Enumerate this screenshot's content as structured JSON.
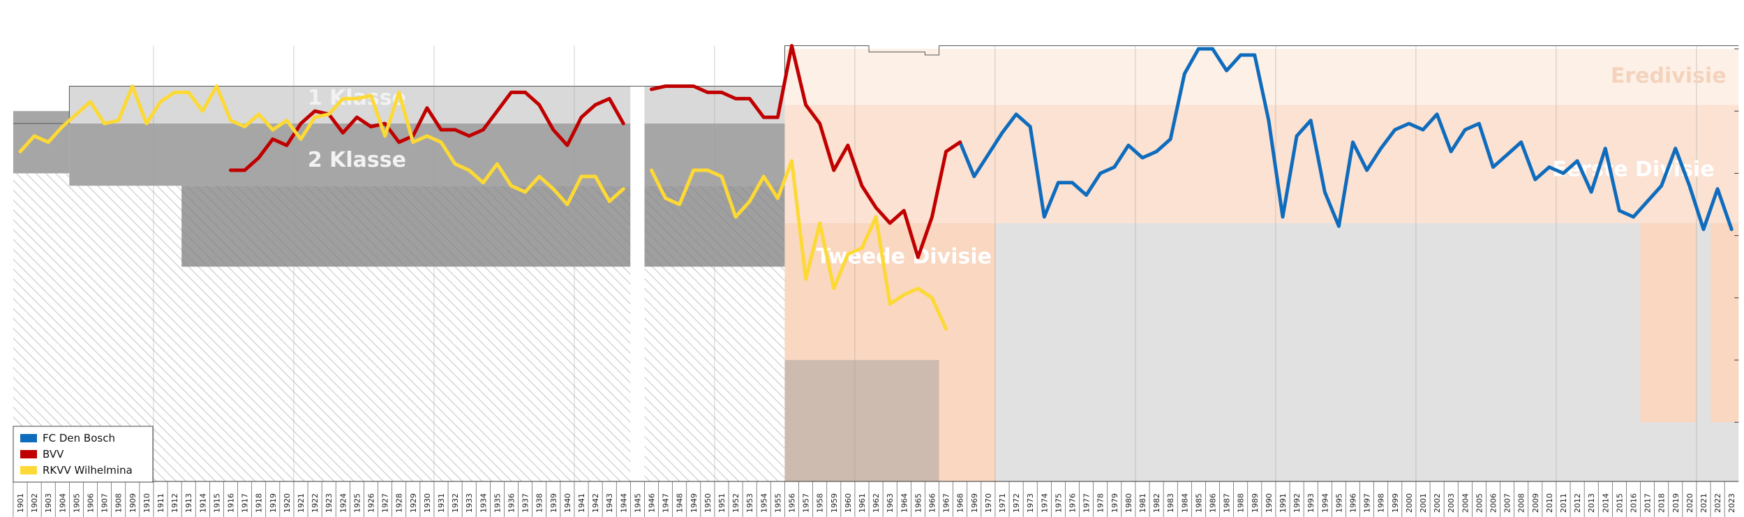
{
  "chart_data": {
    "type": "line",
    "x_range": [
      1901,
      2023
    ],
    "y_range": [
      1,
      140
    ],
    "xticks": [
      "1901",
      "1902",
      "1903",
      "1904",
      "1905",
      "1906",
      "1907",
      "1908",
      "1909",
      "1910",
      "1911",
      "1912",
      "1913",
      "1914",
      "1915",
      "1916",
      "1917",
      "1918",
      "1919",
      "1920",
      "1921",
      "1922",
      "1923",
      "1924",
      "1925",
      "1926",
      "1927",
      "1928",
      "1929",
      "1930",
      "1931",
      "1932",
      "1933",
      "1934",
      "1935",
      "1936",
      "1937",
      "1938",
      "1939",
      "1940",
      "1941",
      "1942",
      "1943",
      "1944",
      "1945",
      "1946",
      "1947",
      "1948",
      "1949",
      "1950",
      "1951",
      "1952",
      "1953",
      "1954",
      "1955",
      "1956",
      "1957",
      "1958",
      "1959",
      "1960",
      "1961",
      "1962",
      "1963",
      "1964",
      "1965",
      "1966",
      "1967",
      "1968",
      "1969",
      "1970",
      "1971",
      "1972",
      "1973",
      "1974",
      "1975",
      "1976",
      "1977",
      "1978",
      "1979",
      "1980",
      "1981",
      "1982",
      "1983",
      "1984",
      "1985",
      "1986",
      "1987",
      "1988",
      "1989",
      "1990",
      "1991",
      "1992",
      "1993",
      "1994",
      "1995",
      "1996",
      "1997",
      "1998",
      "1999",
      "2000",
      "2001",
      "2002",
      "2003",
      "2004",
      "2005",
      "2006",
      "2007",
      "2008",
      "2009",
      "2010",
      "2011",
      "2012",
      "2013",
      "2014",
      "2015",
      "2016",
      "2017",
      "2018",
      "2019",
      "2020",
      "2021",
      "2022",
      "2023"
    ],
    "division_labels": [
      {
        "text": "1 Klasse",
        "x": 1925,
        "y": 124,
        "color": "#f2f2f2"
      },
      {
        "text": "2 Klasse",
        "x": 1925,
        "y": 104,
        "color": "#f2f2f2"
      },
      {
        "text": "Tweede Divisie",
        "x": 1964,
        "y": 73,
        "color": "#ffffff"
      },
      {
        "text": "Eerste Divisie",
        "x": 2016,
        "y": 101,
        "color": "#ffffff"
      },
      {
        "text": "Eredivisie",
        "x": 2018.5,
        "y": 131,
        "color": "#f4d3bd"
      }
    ],
    "series": [
      {
        "name": "FC Den Bosch",
        "color": "#0f6cbd",
        "segments": [
          [
            [
              1968,
              110
            ],
            [
              1969,
              99
            ],
            [
              1970,
              106
            ],
            [
              1971,
              113
            ],
            [
              1972,
              119
            ],
            [
              1973,
              115
            ],
            [
              1974,
              86
            ],
            [
              1975,
              97
            ],
            [
              1976,
              97
            ],
            [
              1977,
              93
            ],
            [
              1978,
              100
            ],
            [
              1979,
              102
            ],
            [
              1980,
              109
            ],
            [
              1981,
              105
            ],
            [
              1982,
              107
            ],
            [
              1983,
              111
            ],
            [
              1984,
              132
            ],
            [
              1985,
              140
            ],
            [
              1986,
              140
            ],
            [
              1987,
              133
            ],
            [
              1988,
              138
            ],
            [
              1989,
              138
            ],
            [
              1990,
              117
            ],
            [
              1991,
              86
            ],
            [
              1992,
              112
            ],
            [
              1993,
              117
            ],
            [
              1994,
              94
            ],
            [
              1995,
              83
            ],
            [
              1996,
              110
            ],
            [
              1997,
              101
            ],
            [
              1998,
              108
            ],
            [
              1999,
              114
            ],
            [
              2000,
              116
            ],
            [
              2001,
              114
            ],
            [
              2002,
              119
            ],
            [
              2003,
              107
            ],
            [
              2004,
              114
            ],
            [
              2005,
              116
            ],
            [
              2006,
              102
            ],
            [
              2007,
              106
            ],
            [
              2008,
              110
            ],
            [
              2009,
              98
            ],
            [
              2010,
              102
            ],
            [
              2011,
              100
            ],
            [
              2012,
              104
            ],
            [
              2013,
              94
            ],
            [
              2014,
              108
            ],
            [
              2015,
              88
            ],
            [
              2016,
              86
            ],
            [
              2017,
              91
            ],
            [
              2018,
              96
            ],
            [
              2019,
              108
            ],
            [
              2020,
              96
            ],
            [
              2021,
              82
            ],
            [
              2022,
              95
            ],
            [
              2023,
              82
            ]
          ]
        ]
      },
      {
        "name": "BVV",
        "color": "#c00000",
        "segments": [
          [
            [
              1916,
              101
            ],
            [
              1917,
              101
            ],
            [
              1918,
              105
            ],
            [
              1919,
              111
            ],
            [
              1920,
              109
            ],
            [
              1921,
              116
            ],
            [
              1922,
              120
            ],
            [
              1923,
              119
            ],
            [
              1924,
              113
            ],
            [
              1925,
              118
            ],
            [
              1926,
              115
            ],
            [
              1927,
              116
            ],
            [
              1928,
              110
            ],
            [
              1929,
              112
            ],
            [
              1930,
              121
            ],
            [
              1931,
              114
            ],
            [
              1932,
              114
            ],
            [
              1933,
              112
            ],
            [
              1934,
              114
            ],
            [
              1935,
              120
            ],
            [
              1936,
              126
            ],
            [
              1937,
              126
            ],
            [
              1938,
              122
            ],
            [
              1939,
              114
            ],
            [
              1940,
              109
            ],
            [
              1941,
              118
            ],
            [
              1942,
              122
            ],
            [
              1943,
              124
            ],
            [
              1944,
              116
            ]
          ],
          [
            [
              1946,
              127
            ],
            [
              1947,
              128
            ],
            [
              1948,
              128
            ],
            [
              1949,
              128
            ],
            [
              1950,
              126
            ],
            [
              1951,
              126
            ],
            [
              1952,
              124
            ],
            [
              1953,
              124
            ],
            [
              1954,
              118
            ],
            [
              1955,
              118
            ],
            [
              1956,
              141
            ],
            [
              1957,
              122
            ],
            [
              1958,
              116
            ],
            [
              1959,
              101
            ],
            [
              1960,
              109
            ],
            [
              1961,
              96
            ],
            [
              1962,
              89
            ],
            [
              1963,
              84
            ],
            [
              1964,
              88
            ],
            [
              1965,
              73
            ],
            [
              1966,
              86
            ],
            [
              1967,
              107
            ],
            [
              1968,
              110
            ]
          ]
        ]
      },
      {
        "name": "RKVV Wilhelmina",
        "color": "#fdd935",
        "segments": [
          [
            [
              1901,
              107
            ],
            [
              1902,
              112
            ],
            [
              1903,
              110
            ],
            [
              1904,
              115
            ],
            [
              1905,
              119
            ],
            [
              1906,
              123
            ],
            [
              1907,
              116
            ],
            [
              1908,
              117
            ],
            [
              1909,
              128
            ],
            [
              1910,
              116
            ],
            [
              1911,
              123
            ],
            [
              1912,
              126
            ],
            [
              1913,
              126
            ],
            [
              1914,
              120
            ],
            [
              1915,
              128
            ],
            [
              1916,
              117
            ],
            [
              1917,
              115
            ],
            [
              1918,
              119
            ],
            [
              1919,
              114
            ],
            [
              1920,
              117
            ],
            [
              1921,
              111
            ],
            [
              1922,
              118
            ],
            [
              1923,
              119
            ],
            [
              1924,
              124
            ],
            [
              1925,
              124
            ],
            [
              1926,
              125
            ],
            [
              1927,
              112
            ],
            [
              1928,
              126
            ],
            [
              1929,
              110
            ],
            [
              1930,
              112
            ],
            [
              1931,
              110
            ],
            [
              1932,
              103
            ],
            [
              1933,
              101
            ],
            [
              1934,
              97
            ],
            [
              1935,
              103
            ],
            [
              1936,
              96
            ],
            [
              1937,
              94
            ],
            [
              1938,
              99
            ],
            [
              1939,
              95
            ],
            [
              1940,
              90
            ],
            [
              1941,
              99
            ],
            [
              1942,
              99
            ],
            [
              1943,
              91
            ],
            [
              1944,
              95
            ]
          ],
          [
            [
              1946,
              101
            ],
            [
              1947,
              92
            ],
            [
              1948,
              90
            ],
            [
              1949,
              101
            ],
            [
              1950,
              101
            ],
            [
              1951,
              99
            ],
            [
              1952,
              86
            ],
            [
              1953,
              91
            ],
            [
              1954,
              99
            ],
            [
              1955,
              92
            ],
            [
              1956,
              104
            ],
            [
              1957,
              66
            ],
            [
              1958,
              84
            ],
            [
              1959,
              63
            ],
            [
              1960,
              74
            ],
            [
              1961,
              76
            ],
            [
              1962,
              86
            ],
            [
              1963,
              58
            ],
            [
              1964,
              61
            ],
            [
              1965,
              63
            ],
            [
              1966,
              60
            ],
            [
              1967,
              50
            ]
          ]
        ]
      }
    ],
    "legend": {
      "position": "bottom-left",
      "entries": [
        "FC Den Bosch",
        "BVV",
        "RKVV Wilhelmina"
      ]
    },
    "grid": true
  },
  "colors": {
    "eredivisie_band": "#fdf0e7",
    "eerste_band": "#fbe2d2",
    "tweede_band": "#f9d7c1",
    "klasse1_band": "#d9d9d9",
    "klasse2_band": "#a6a6a6",
    "klasse3_band": "#7f7f7f",
    "amateur_band": "#d9d9d9"
  }
}
